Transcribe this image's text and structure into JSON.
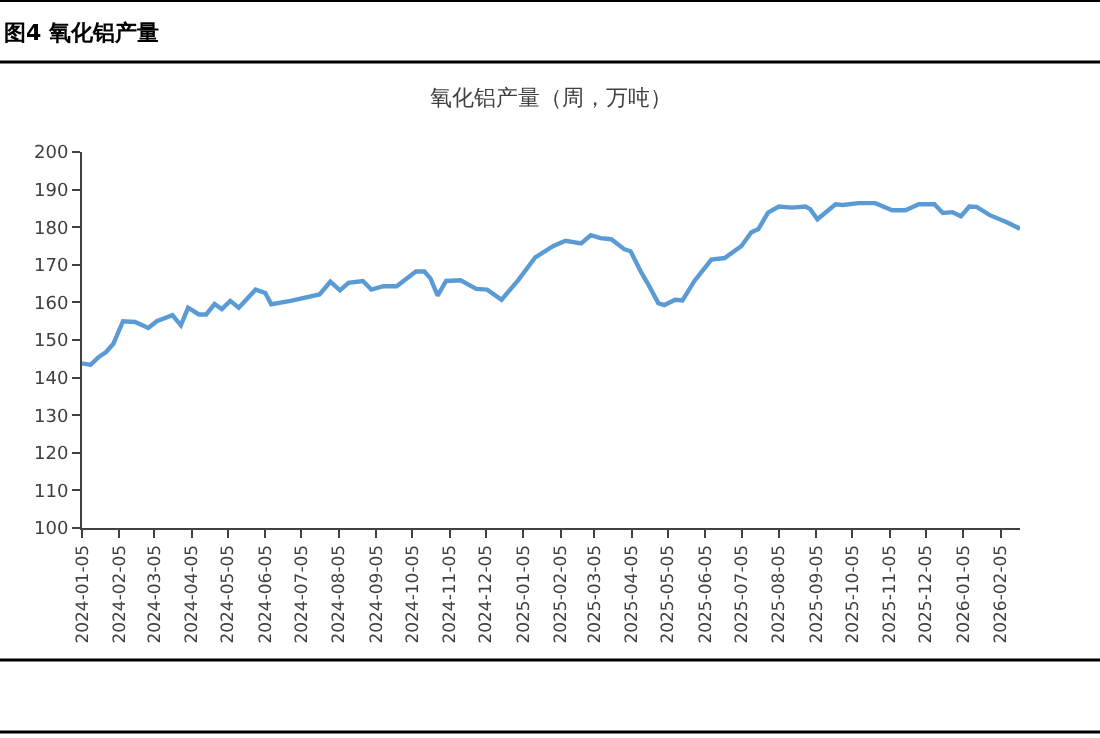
{
  "chart_data": {
    "type": "line",
    "title": "图4 氧化铝产量",
    "subtitle": "氧化铝产量（周，万吨）",
    "x": [
      "2024-01-05",
      "2024-01-12",
      "2024-01-19",
      "2024-01-25",
      "2024-01-31",
      "2024-02-08",
      "2024-02-18",
      "2024-02-29",
      "2024-03-07",
      "2024-03-20",
      "2024-03-27",
      "2024-04-02",
      "2024-04-11",
      "2024-04-17",
      "2024-04-24",
      "2024-04-30",
      "2024-05-07",
      "2024-05-14",
      "2024-05-28",
      "2024-06-05",
      "2024-06-10",
      "2024-06-26",
      "2024-07-20",
      "2024-07-29",
      "2024-08-06",
      "2024-08-13",
      "2024-08-25",
      "2024-09-01",
      "2024-09-11",
      "2024-09-22",
      "2024-10-08",
      "2024-10-15",
      "2024-10-20",
      "2024-10-26",
      "2024-11-02",
      "2024-11-14",
      "2024-11-27",
      "2024-12-06",
      "2024-12-18",
      "2025-01-01",
      "2025-01-15",
      "2025-01-30",
      "2025-02-09",
      "2025-02-22",
      "2025-03-02",
      "2025-03-10",
      "2025-03-19",
      "2025-03-30",
      "2025-04-04",
      "2025-04-13",
      "2025-04-19",
      "2025-04-27",
      "2025-05-02",
      "2025-05-11",
      "2025-05-17",
      "2025-05-27",
      "2025-06-10",
      "2025-06-21",
      "2025-07-05",
      "2025-07-13",
      "2025-07-19",
      "2025-07-27",
      "2025-08-05",
      "2025-08-16",
      "2025-08-27",
      "2025-08-31",
      "2025-09-06",
      "2025-09-21",
      "2025-09-27",
      "2025-10-10",
      "2025-10-24",
      "2025-11-07",
      "2025-11-18",
      "2025-11-29",
      "2025-12-12",
      "2025-12-19",
      "2025-12-27",
      "2026-01-03",
      "2026-01-10",
      "2026-01-16",
      "2026-01-27",
      "2026-02-10",
      "2026-02-21"
    ],
    "series": [
      {
        "color": "#5b9bd5",
        "values": [
          143.8,
          143.4,
          145.5,
          146.8,
          149,
          155,
          154.8,
          153.2,
          155,
          156.6,
          153.9,
          158.6,
          156.8,
          156.8,
          159.6,
          158.2,
          160.4,
          158.6,
          163.4,
          162.5,
          159.5,
          160.4,
          162.1,
          165.5,
          163.2,
          165.2,
          165.7,
          163.4,
          164.3,
          164.3,
          168.2,
          168.2,
          166.4,
          161.8,
          165.7,
          165.9,
          163.6,
          163.4,
          160.7,
          166,
          172,
          175,
          176.4,
          175.7,
          177.9,
          177.1,
          176.8,
          174.1,
          173.6,
          167.9,
          164.6,
          159.8,
          159.3,
          160.7,
          160.5,
          165.7,
          171.4,
          171.8,
          175,
          178.6,
          179.5,
          183.9,
          185.5,
          185.2,
          185.5,
          184.8,
          182.1,
          186.1,
          185.9,
          186.4,
          186.4,
          184.5,
          184.5,
          186.1,
          186.1,
          183.8,
          184,
          182.9,
          185.5,
          185.4,
          183.2,
          181.3,
          179.6
        ]
      }
    ],
    "xlim": [
      "2024-01-05",
      "2026-02-21"
    ],
    "xticks": [
      "2024-01-05",
      "2024-02-05",
      "2024-03-05",
      "2024-04-05",
      "2024-05-05",
      "2024-06-05",
      "2024-07-05",
      "2024-08-05",
      "2024-09-05",
      "2024-10-05",
      "2024-11-05",
      "2024-12-05",
      "2025-01-05",
      "2025-02-05",
      "2025-03-05",
      "2025-04-05",
      "2025-05-05",
      "2025-06-05",
      "2025-07-05",
      "2025-08-05",
      "2025-09-05",
      "2025-10-05",
      "2025-11-05",
      "2025-12-05",
      "2026-01-05",
      "2026-02-05"
    ],
    "ylim": [
      100,
      200
    ],
    "yticks": [
      100,
      110,
      120,
      130,
      140,
      150,
      160,
      170,
      180,
      190,
      200
    ],
    "marker": "none",
    "line_style": "solid"
  }
}
